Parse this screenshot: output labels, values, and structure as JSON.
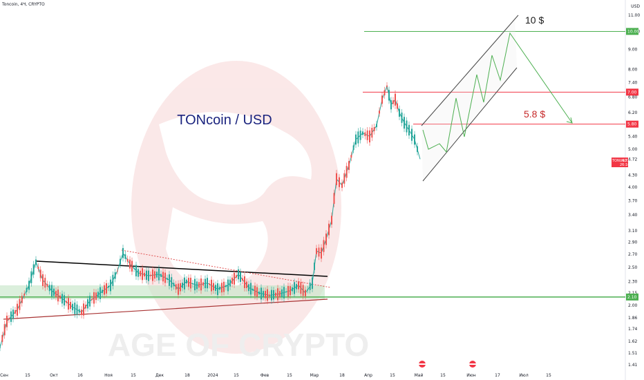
{
  "header": {
    "title": "Toncoin, 4Ч, CRYPTO"
  },
  "currency_label": "USD",
  "watermark": "AGE OF CRYPTO",
  "chart_title": "TONcoin / USD",
  "annotations": {
    "target_top": "10 $",
    "target_mid": "5.8 $"
  },
  "chart_data": {
    "type": "candlestick",
    "title": "TONcoin / USD",
    "symbol": "TONUSD",
    "timeframe": "4Ч",
    "yscale": "log",
    "ylim": [
      1.38,
      12.2
    ],
    "y_ticks": [
      "1.41",
      "1.51",
      "1.62",
      "1.74",
      "1.86",
      "2.00",
      "2.15",
      "2.30",
      "2.50",
      "2.70",
      "2.90",
      "3.10",
      "3.40",
      "3.70",
      "4.00",
      "4.30",
      "4.72",
      "5.00",
      "5.40",
      "5.80",
      "6.20",
      "6.80",
      "7.00",
      "7.40",
      "8.00",
      "9.00",
      "10.00",
      "11.00"
    ],
    "y_tick_values": [
      1.41,
      1.51,
      1.62,
      1.74,
      1.86,
      2.0,
      2.15,
      2.3,
      2.5,
      2.7,
      2.9,
      3.1,
      3.4,
      3.7,
      4.0,
      4.3,
      4.72,
      5.0,
      5.4,
      5.8,
      6.2,
      6.8,
      7.0,
      7.4,
      8.0,
      9.0,
      10.0,
      11.0
    ],
    "x_ticks": [
      "Сен",
      "15",
      "Окт",
      "16",
      "Ноя",
      "15",
      "Дек",
      "18",
      "2024",
      "15",
      "Фев",
      "15",
      "Мар",
      "18",
      "Апр",
      "15",
      "Май",
      "15",
      "Июн",
      "17",
      "Июл",
      "15"
    ],
    "highlighted_levels": [
      {
        "label": "10.00",
        "value": 10.0,
        "color": "#4caf50"
      },
      {
        "label": "7.00",
        "value": 7.0,
        "color": "#f23645"
      },
      {
        "label": "5.80",
        "value": 5.8,
        "color": "#f23645"
      },
      {
        "label": "2.10",
        "value": 2.1,
        "color": "#4caf50"
      }
    ],
    "last_price": {
      "symbol": "TONUSD",
      "value": "4.72",
      "countdown": "26:10",
      "color": "#f23645"
    },
    "price_path": [
      [
        0,
        1.56
      ],
      [
        10,
        1.82
      ],
      [
        25,
        1.95
      ],
      [
        42,
        2.25
      ],
      [
        52,
        2.58
      ],
      [
        62,
        2.32
      ],
      [
        75,
        2.18
      ],
      [
        90,
        2.08
      ],
      [
        105,
        1.98
      ],
      [
        118,
        1.92
      ],
      [
        130,
        2.05
      ],
      [
        145,
        2.15
      ],
      [
        160,
        2.25
      ],
      [
        170,
        2.45
      ],
      [
        178,
        2.72
      ],
      [
        188,
        2.55
      ],
      [
        200,
        2.42
      ],
      [
        215,
        2.38
      ],
      [
        230,
        2.4
      ],
      [
        245,
        2.32
      ],
      [
        258,
        2.2
      ],
      [
        270,
        2.3
      ],
      [
        285,
        2.25
      ],
      [
        300,
        2.28
      ],
      [
        315,
        2.2
      ],
      [
        330,
        2.25
      ],
      [
        345,
        2.4
      ],
      [
        360,
        2.22
      ],
      [
        375,
        2.15
      ],
      [
        390,
        2.12
      ],
      [
        405,
        2.14
      ],
      [
        420,
        2.18
      ],
      [
        432,
        2.25
      ],
      [
        442,
        2.15
      ],
      [
        452,
        2.28
      ],
      [
        458,
        2.75
      ],
      [
        465,
        2.72
      ],
      [
        472,
        2.95
      ],
      [
        480,
        3.3
      ],
      [
        487,
        4.2
      ],
      [
        495,
        4.05
      ],
      [
        505,
        4.55
      ],
      [
        515,
        5.3
      ],
      [
        525,
        5.5
      ],
      [
        535,
        5.4
      ],
      [
        545,
        5.75
      ],
      [
        553,
        6.7
      ],
      [
        560,
        7.25
      ],
      [
        566,
        6.5
      ],
      [
        572,
        6.7
      ],
      [
        578,
        6.2
      ],
      [
        585,
        5.85
      ],
      [
        592,
        5.6
      ],
      [
        600,
        5.3
      ],
      [
        608,
        4.72
      ]
    ]
  }
}
